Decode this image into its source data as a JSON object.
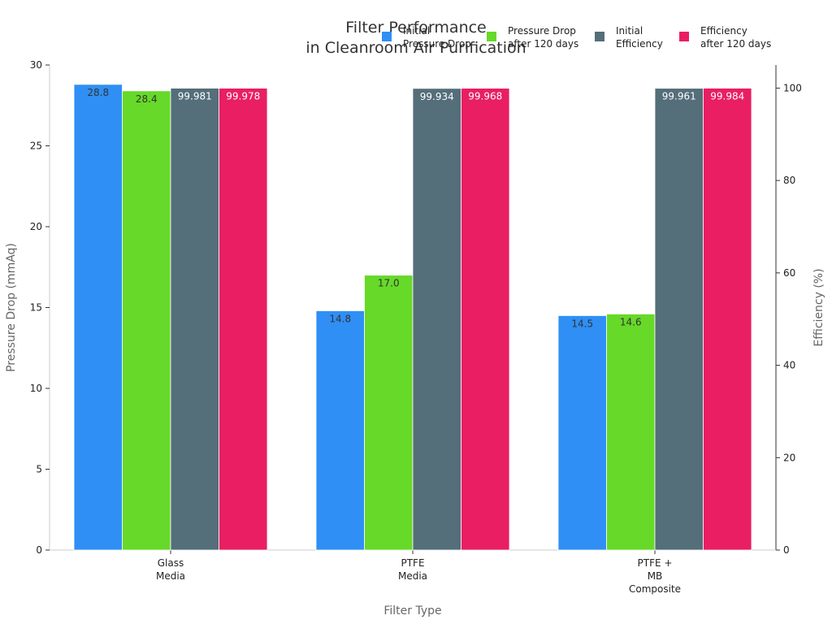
{
  "chart_data": {
    "type": "bar",
    "title": [
      "Filter Performance",
      "in Cleanroom Air Purification"
    ],
    "xlabel": "Filter Type",
    "ylabel_left": "Pressure Drop (mmAq)",
    "ylabel_right": "Efficiency (%)",
    "categories": [
      [
        "Glass",
        "Media"
      ],
      [
        "PTFE",
        "Media"
      ],
      [
        "PTFE +",
        "MB",
        "Composite"
      ]
    ],
    "left_axis": {
      "range": [
        0,
        30
      ],
      "ticks": [
        0,
        5,
        10,
        15,
        20,
        25,
        30
      ]
    },
    "right_axis": {
      "range": [
        0,
        105
      ],
      "ticks": [
        0,
        20,
        40,
        60,
        80,
        100
      ]
    },
    "legend_position": "top-right",
    "grid": false,
    "series": [
      {
        "name": [
          "Initial",
          "Pressure Drop"
        ],
        "axis": "left",
        "color": "#2f8ff5",
        "label_color": "#333333",
        "values": [
          28.8,
          14.8,
          14.5
        ],
        "labels": [
          "28.8",
          "14.8",
          "14.5"
        ]
      },
      {
        "name": [
          "Pressure Drop",
          "after 120 days"
        ],
        "axis": "left",
        "color": "#66d929",
        "label_color": "#333333",
        "values": [
          28.4,
          17.0,
          14.6
        ],
        "labels": [
          "28.4",
          "17.0",
          "14.6"
        ]
      },
      {
        "name": [
          "Initial",
          "Efficiency"
        ],
        "axis": "right",
        "color": "#546e7a",
        "label_color": "#ffffff",
        "values": [
          99.981,
          99.934,
          99.961
        ],
        "labels": [
          "99.981",
          "99.934",
          "99.961"
        ]
      },
      {
        "name": [
          "Efficiency",
          "after 120 days"
        ],
        "axis": "right",
        "color": "#e91e63",
        "label_color": "#ffffff",
        "values": [
          99.978,
          99.968,
          99.984
        ],
        "labels": [
          "99.978",
          "99.968",
          "99.984"
        ]
      }
    ]
  }
}
